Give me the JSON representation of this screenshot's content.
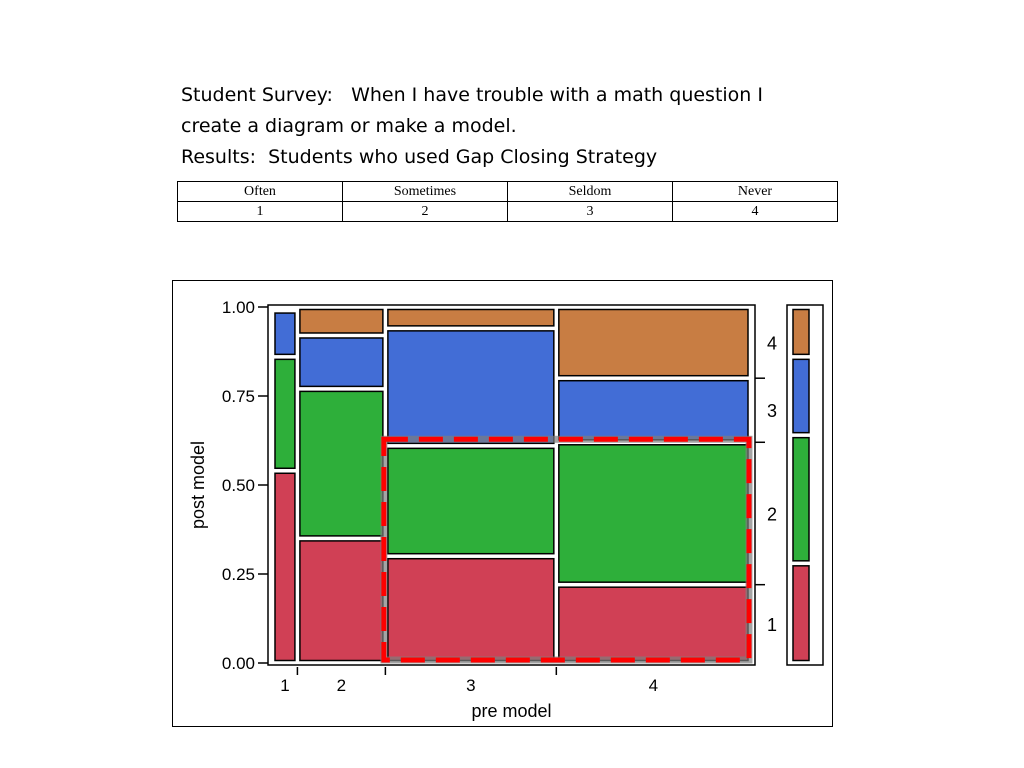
{
  "heading": {
    "line1": "Student Survey:   When I have trouble with a math question I",
    "line2": "create a diagram or make a model.",
    "line3": "Results:  Students who used Gap Closing Strategy"
  },
  "survey_table": {
    "headers": [
      "Often",
      "Sometimes",
      "Seldom",
      "Never"
    ],
    "codes": [
      "1",
      "2",
      "3",
      "4"
    ]
  },
  "colors": {
    "level1": "#d04055",
    "level2": "#2eaf3a",
    "level3": "#426dd6",
    "level4": "#c87d43",
    "highlight": "#ff0000"
  },
  "chart_data": {
    "type": "mosaic",
    "xlabel": "pre model",
    "ylabel": "post model",
    "ylim": [
      0,
      1
    ],
    "y_ticks": [
      "0.00",
      "0.25",
      "0.50",
      "0.75",
      "1.00"
    ],
    "categories": [
      "1",
      "2",
      "3",
      "4"
    ],
    "column_widths": [
      0.06,
      0.25,
      0.5,
      0.57
    ],
    "column_proportions": [
      {
        "1": 0.54,
        "2": 0.32,
        "3": 0.13,
        "4": 0.01
      },
      {
        "1": 0.35,
        "2": 0.42,
        "3": 0.15,
        "4": 0.08
      },
      {
        "1": 0.3,
        "2": 0.31,
        "3": 0.33,
        "4": 0.06
      },
      {
        "1": 0.22,
        "2": 0.4,
        "3": 0.18,
        "4": 0.2
      }
    ],
    "marginal": {
      "1": 0.28,
      "2": 0.36,
      "3": 0.22,
      "4": 0.14
    },
    "right_labels": [
      "1",
      "2",
      "3",
      "4"
    ],
    "highlight": {
      "style": "dashed",
      "columns": [
        "3",
        "4"
      ],
      "levels": [
        "1",
        "2"
      ]
    }
  }
}
